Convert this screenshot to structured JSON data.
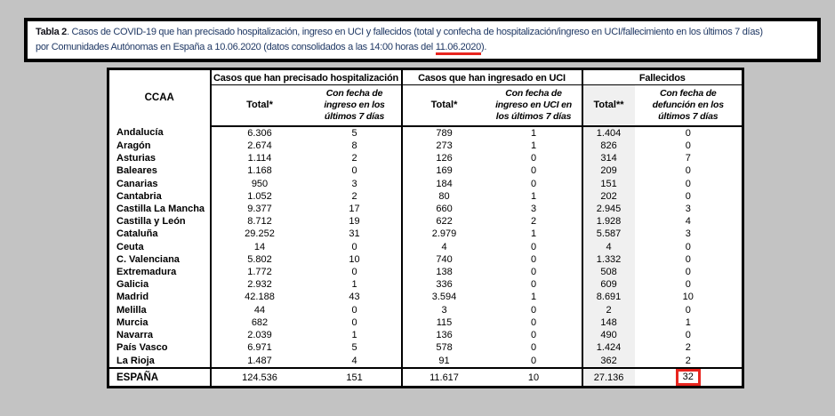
{
  "caption": {
    "bold": "Tabla 2",
    "line1_rest": ". Casos de COVID-19 que han precisado hospitalización, ingreso en UCI y fallecidos (total y confecha de hospitalización/ingreso en UCI/fallecimiento en los últimos 7 días)",
    "line2_before": "por Comunidades Autónomas en España a 10.06.2020 (datos consolidados a las 14:00 horas del ",
    "date": "11.06.2020",
    "line2_after": ").",
    "text_color": "#1f3864",
    "underline_color": "#e8251f"
  },
  "table": {
    "ccaa_header": "CCAA",
    "groups": [
      {
        "title": "Casos que han precisado hospitalización",
        "sub": [
          "Total*",
          "Con fecha de ingreso en los últimos 7 días"
        ]
      },
      {
        "title": "Casos que han ingresado en UCI",
        "sub": [
          "Total*",
          "Con fecha de ingreso en UCI en los últimos 7 días"
        ]
      },
      {
        "title": "Fallecidos",
        "sub": [
          "Total**",
          "Con fecha de defunción en los últimos 7 días"
        ]
      }
    ],
    "rows": [
      {
        "ccaa": "Andalucía",
        "values": [
          "6.306",
          "5",
          "789",
          "1",
          "1.404",
          "0"
        ]
      },
      {
        "ccaa": "Aragón",
        "values": [
          "2.674",
          "8",
          "273",
          "1",
          "826",
          "0"
        ]
      },
      {
        "ccaa": "Asturias",
        "values": [
          "1.114",
          "2",
          "126",
          "0",
          "314",
          "7"
        ]
      },
      {
        "ccaa": "Baleares",
        "values": [
          "1.168",
          "0",
          "169",
          "0",
          "209",
          "0"
        ]
      },
      {
        "ccaa": "Canarias",
        "values": [
          "950",
          "3",
          "184",
          "0",
          "151",
          "0"
        ]
      },
      {
        "ccaa": "Cantabria",
        "values": [
          "1.052",
          "2",
          "80",
          "1",
          "202",
          "0"
        ]
      },
      {
        "ccaa": "Castilla La Mancha",
        "values": [
          "9.377",
          "17",
          "660",
          "3",
          "2.945",
          "3"
        ]
      },
      {
        "ccaa": "Castilla y León",
        "values": [
          "8.712",
          "19",
          "622",
          "2",
          "1.928",
          "4"
        ]
      },
      {
        "ccaa": "Cataluña",
        "values": [
          "29.252",
          "31",
          "2.979",
          "1",
          "5.587",
          "3"
        ]
      },
      {
        "ccaa": "Ceuta",
        "values": [
          "14",
          "0",
          "4",
          "0",
          "4",
          "0"
        ]
      },
      {
        "ccaa": "C. Valenciana",
        "values": [
          "5.802",
          "10",
          "740",
          "0",
          "1.332",
          "0"
        ]
      },
      {
        "ccaa": "Extremadura",
        "values": [
          "1.772",
          "0",
          "138",
          "0",
          "508",
          "0"
        ]
      },
      {
        "ccaa": "Galicia",
        "values": [
          "2.932",
          "1",
          "336",
          "0",
          "609",
          "0"
        ]
      },
      {
        "ccaa": "Madrid",
        "values": [
          "42.188",
          "43",
          "3.594",
          "1",
          "8.691",
          "10"
        ]
      },
      {
        "ccaa": "Melilla",
        "values": [
          "44",
          "0",
          "3",
          "0",
          "2",
          "0"
        ]
      },
      {
        "ccaa": "Murcia",
        "values": [
          "682",
          "0",
          "115",
          "0",
          "148",
          "1"
        ]
      },
      {
        "ccaa": "Navarra",
        "values": [
          "2.039",
          "1",
          "136",
          "0",
          "490",
          "0"
        ]
      },
      {
        "ccaa": "País Vasco",
        "values": [
          "6.971",
          "5",
          "578",
          "0",
          "1.424",
          "2"
        ]
      },
      {
        "ccaa": "La Rioja",
        "values": [
          "1.487",
          "4",
          "91",
          "0",
          "362",
          "2"
        ]
      }
    ],
    "total_row": {
      "ccaa": "ESPAÑA",
      "values": [
        "124.536",
        "151",
        "11.617",
        "10",
        "27.136",
        "32"
      ],
      "highlighted_value": "32",
      "highlight_color": "#e8251f"
    },
    "shaded_column_color": "#f0f0f0"
  }
}
